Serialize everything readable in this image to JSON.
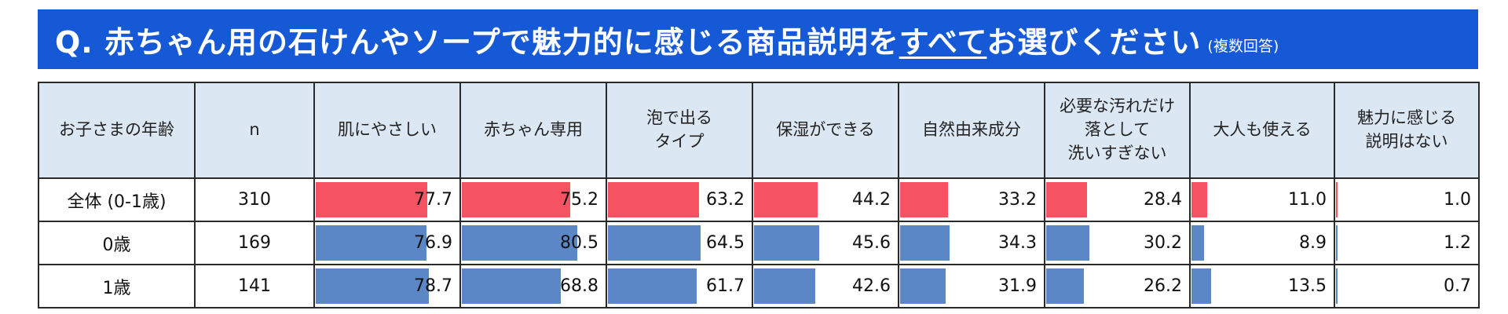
{
  "title": {
    "prefix": "Q. 赤ちゃん用の石けんやソープで魅力的に感じる商品説明を",
    "emphasis": "すべて",
    "suffix": "お選びください",
    "note": "(複数回答)",
    "bg_color": "#1659d6"
  },
  "colors": {
    "total_bar": "#f55262",
    "group_bar": "#5b87c6",
    "header_bg": "#dce7f4"
  },
  "table": {
    "corner_header": "お子さまの年齢",
    "n_header": "n",
    "columns": [
      [
        "肌にやさしい"
      ],
      [
        "赤ちゃん専用"
      ],
      [
        "泡で出る",
        "タイプ"
      ],
      [
        "保湿ができる"
      ],
      [
        "自然由来成分"
      ],
      [
        "必要な汚れだけ",
        "落として",
        "洗いすぎない"
      ],
      [
        "大人も使える"
      ],
      [
        "魅力に感じる",
        "説明はない"
      ]
    ],
    "rows": [
      {
        "label": "全体 (0-1歳)",
        "n": "310",
        "kind": "total",
        "values": [
          77.7,
          75.2,
          63.2,
          44.2,
          33.2,
          28.4,
          11.0,
          1.0
        ]
      },
      {
        "label": "0歳",
        "n": "169",
        "kind": "group",
        "values": [
          76.9,
          80.5,
          64.5,
          45.6,
          34.3,
          30.2,
          8.9,
          1.2
        ]
      },
      {
        "label": "1歳",
        "n": "141",
        "kind": "group",
        "values": [
          78.7,
          68.8,
          61.7,
          42.6,
          31.9,
          26.2,
          13.5,
          0.7
        ]
      }
    ]
  },
  "chart_data": {
    "type": "table",
    "title": "Q. 赤ちゃん用の石けんやソープで魅力的に感じる商品説明をすべてお選びください(複数回答)",
    "row_header": "お子さまの年齢",
    "categories": [
      "肌にやさしい",
      "赤ちゃん専用",
      "泡で出るタイプ",
      "保湿ができる",
      "自然由来成分",
      "必要な汚れだけ落として洗いすぎない",
      "大人も使える",
      "魅力に感じる説明はない"
    ],
    "series": [
      {
        "name": "全体 (0-1歳)",
        "n": 310,
        "values": [
          77.7,
          75.2,
          63.2,
          44.2,
          33.2,
          28.4,
          11.0,
          1.0
        ]
      },
      {
        "name": "0歳",
        "n": 169,
        "values": [
          76.9,
          80.5,
          64.5,
          45.6,
          34.3,
          30.2,
          8.9,
          1.2
        ]
      },
      {
        "name": "1歳",
        "n": 141,
        "values": [
          78.7,
          68.8,
          61.7,
          42.6,
          31.9,
          26.2,
          13.5,
          0.7
        ]
      }
    ],
    "bar_scale_max": 100
  }
}
